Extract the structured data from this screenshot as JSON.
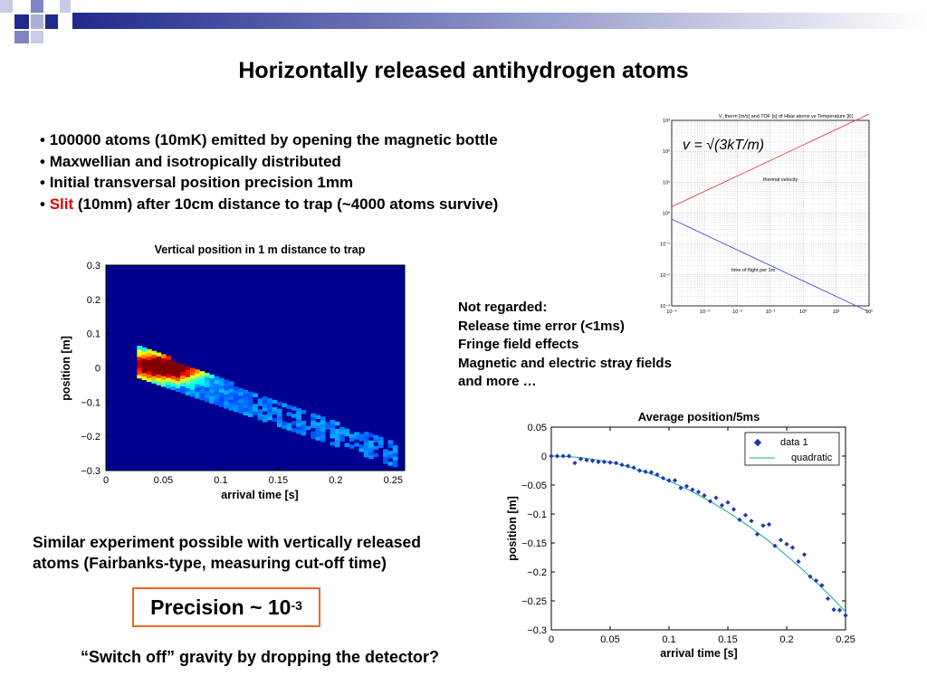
{
  "slide": {
    "title": "Horizontally released antihydrogen atoms",
    "bullets": [
      {
        "bullet": "•",
        "prefix": "",
        "red": "",
        "text": "100000 atoms (10mK) emitted by opening the magnetic bottle"
      },
      {
        "bullet": "•",
        "prefix": "",
        "red": "",
        "text": "Maxwellian and isotropically distributed"
      },
      {
        "bullet": "•",
        "prefix": "",
        "red": "",
        "text": "Initial transversal position precision 1mm"
      },
      {
        "bullet": "•",
        "prefix": "",
        "red": "Slit",
        "text": "(10mm) after 10cm distance to trap (~4000 atoms survive)"
      }
    ],
    "not_regarded": [
      "Not regarded:",
      "Release time error (<1ms)",
      "Fringe field effects",
      "Magnetic and electric stray fields",
      "and more …"
    ],
    "similar": [
      "Similar experiment possible with vertically released",
      "atoms (Fairbanks-type, measuring cut-off time)"
    ],
    "precision": {
      "label": "Precision ~ 10",
      "exponent": "-3"
    },
    "switch_off": "“Switch off” gravity by dropping the detector?",
    "colors": {
      "accent_red": "#e60000",
      "precision_border": "#f26522",
      "deco_blue": "#1f2a8c",
      "heatmap_bg": "#00008f"
    }
  },
  "chart_data": [
    {
      "type": "heatmap",
      "title": "Vertical position in 1 m distance to trap",
      "xlabel": "arrival time [s]",
      "ylabel": "position [m]",
      "xlim": [
        0,
        0.26
      ],
      "ylim": [
        -0.3,
        0.3
      ],
      "xticks": [
        "0",
        "0.05",
        "0.1",
        "0.15",
        "0.2",
        "0.25"
      ],
      "yticks": [
        "0.3",
        "0.2",
        "0.1",
        "0",
        "−0.1",
        "−0.2",
        "−0.3"
      ],
      "band": {
        "x_start": 0.027,
        "x_end": 0.25,
        "upper_at_start": 0.06,
        "lower_at_start": -0.03,
        "upper_at_end": -0.22,
        "lower_at_end": -0.29,
        "peak_x": 0.05,
        "peak_y": 0.0
      },
      "colormap": "jet"
    },
    {
      "type": "line",
      "title": "Average position/5ms",
      "xlabel": "arrival time [s]",
      "ylabel": "position [m]",
      "xlim": [
        0,
        0.25
      ],
      "ylim": [
        -0.3,
        0.05
      ],
      "xticks": [
        "0",
        "0.05",
        "0.1",
        "0.15",
        "0.2",
        "0.25"
      ],
      "yticks": [
        "0.05",
        "0",
        "−0.05",
        "−0.1",
        "−0.15",
        "−0.2",
        "−0.25",
        "−0.3"
      ],
      "grid": false,
      "legend_position": "top-right",
      "legend": [
        "data 1",
        "quadratic"
      ],
      "series": [
        {
          "name": "data 1",
          "style": "markers",
          "color": "#1f3aa8",
          "x": [
            0.0,
            0.005,
            0.01,
            0.015,
            0.02,
            0.025,
            0.03,
            0.035,
            0.04,
            0.045,
            0.05,
            0.055,
            0.06,
            0.065,
            0.07,
            0.075,
            0.08,
            0.085,
            0.09,
            0.095,
            0.1,
            0.105,
            0.11,
            0.115,
            0.12,
            0.125,
            0.13,
            0.135,
            0.14,
            0.145,
            0.15,
            0.155,
            0.16,
            0.165,
            0.17,
            0.175,
            0.18,
            0.185,
            0.19,
            0.195,
            0.2,
            0.205,
            0.21,
            0.215,
            0.22,
            0.225,
            0.23,
            0.235,
            0.24,
            0.245,
            0.25
          ],
          "y": [
            0.0,
            0.0,
            0.0,
            0.0,
            -0.012,
            -0.005,
            -0.007,
            -0.008,
            -0.01,
            -0.01,
            -0.011,
            -0.012,
            -0.015,
            -0.017,
            -0.02,
            -0.025,
            -0.027,
            -0.028,
            -0.032,
            -0.038,
            -0.042,
            -0.042,
            -0.055,
            -0.052,
            -0.058,
            -0.062,
            -0.068,
            -0.078,
            -0.072,
            -0.085,
            -0.08,
            -0.092,
            -0.11,
            -0.102,
            -0.112,
            -0.135,
            -0.12,
            -0.118,
            -0.155,
            -0.145,
            -0.152,
            -0.158,
            -0.182,
            -0.17,
            -0.208,
            -0.215,
            -0.223,
            -0.246,
            -0.265,
            -0.266,
            -0.275
          ]
        },
        {
          "name": "quadratic",
          "style": "line",
          "color": "#1aa6a0",
          "fit": "y = -4.3 x^2"
        }
      ]
    },
    {
      "type": "line",
      "title": "V_therm [m/s] and TOF [s] of Hbar atoms vs Temperature [K]",
      "scale": "log-log",
      "formula": "v = √(3kT/m)",
      "xticks": [
        "10⁻⁴",
        "10⁻³",
        "10⁻²",
        "10⁻¹",
        "10⁰",
        "10¹",
        "10²"
      ],
      "yticks": [
        "10³",
        "10²",
        "10¹",
        "10⁰",
        "10⁻¹",
        "10⁻²",
        "10⁻³"
      ],
      "grid": true,
      "series": [
        {
          "name": "thermal velocity",
          "color": "#e04040",
          "x": [
            0.0001,
            100
          ],
          "y": [
            1.6,
            1600
          ]
        },
        {
          "name": "time of flight per 1m",
          "color": "#4050e0",
          "x": [
            0.0001,
            100
          ],
          "y": [
            0.64,
            0.00064
          ]
        }
      ]
    }
  ]
}
